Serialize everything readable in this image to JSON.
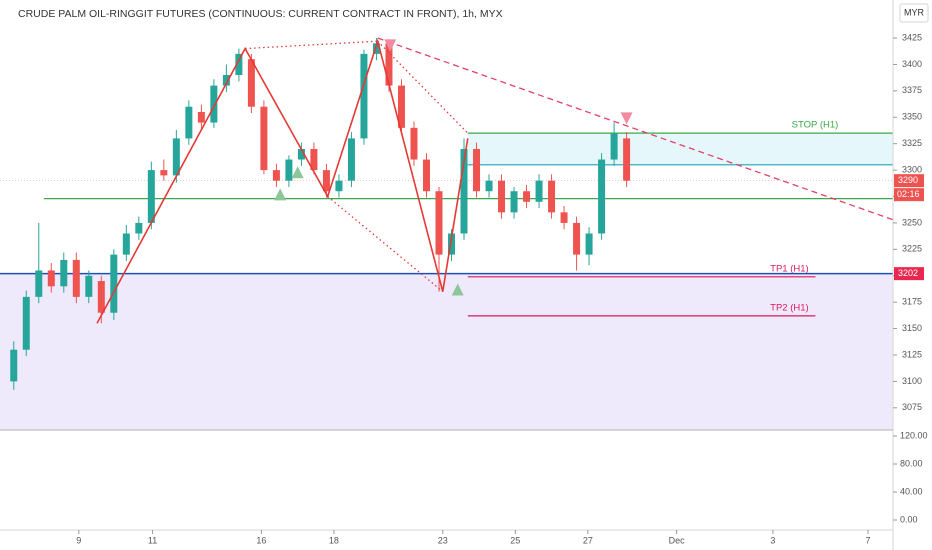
{
  "chart_data": {
    "type": "candlestick",
    "title": "CRUDE PALM OIL-RINGGIT FUTURES (CONTINUOUS: CURRENT CONTRACT IN FRONT), 1h, MYX",
    "currency": "MYR",
    "up_color": "#26a69a",
    "down_color": "#ef5350",
    "open": [
      3100,
      3130,
      3180,
      3205,
      3190,
      3215,
      3180,
      3195,
      3165,
      3220,
      3240,
      3250,
      3300,
      3295,
      3330,
      3355,
      3345,
      3380,
      3390,
      3405,
      3360,
      3300,
      3290,
      3310,
      3320,
      3300,
      3280,
      3290,
      3330,
      3410,
      3420,
      3380,
      3340,
      3310,
      3280,
      3220,
      3240,
      3320,
      3280,
      3290,
      3260,
      3280,
      3270,
      3290,
      3260,
      3250,
      3220,
      3240,
      3310,
      3330
    ],
    "high": [
      3138,
      3186,
      3250,
      3212,
      3222,
      3222,
      3205,
      3200,
      3225,
      3248,
      3256,
      3308,
      3310,
      3338,
      3366,
      3362,
      3386,
      3400,
      3415,
      3410,
      3366,
      3306,
      3314,
      3326,
      3326,
      3306,
      3296,
      3336,
      3414,
      3425,
      3424,
      3386,
      3346,
      3316,
      3284,
      3244,
      3330,
      3326,
      3296,
      3296,
      3284,
      3286,
      3296,
      3296,
      3266,
      3256,
      3246,
      3316,
      3345,
      3336
    ],
    "low": [
      3092,
      3124,
      3174,
      3184,
      3184,
      3174,
      3174,
      3155,
      3158,
      3214,
      3234,
      3244,
      3290,
      3288,
      3324,
      3338,
      3340,
      3374,
      3384,
      3354,
      3296,
      3284,
      3284,
      3304,
      3296,
      3274,
      3274,
      3284,
      3324,
      3404,
      3374,
      3334,
      3304,
      3274,
      3185,
      3214,
      3234,
      3274,
      3274,
      3254,
      3254,
      3264,
      3264,
      3254,
      3244,
      3205,
      3210,
      3234,
      3304,
      3284
    ],
    "close": [
      3130,
      3180,
      3205,
      3190,
      3215,
      3180,
      3200,
      3165,
      3220,
      3240,
      3250,
      3300,
      3295,
      3330,
      3360,
      3345,
      3380,
      3390,
      3410,
      3360,
      3300,
      3290,
      3310,
      3320,
      3300,
      3280,
      3290,
      3330,
      3410,
      3420,
      3380,
      3340,
      3310,
      3280,
      3220,
      3240,
      3320,
      3280,
      3290,
      3260,
      3280,
      3270,
      3290,
      3260,
      3250,
      3220,
      3240,
      3310,
      3335,
      3290
    ],
    "xlim": [
      -1.1,
      70.3
    ],
    "xticks": [
      {
        "value": 5.2,
        "label": "9"
      },
      {
        "value": 11.1,
        "label": "11"
      },
      {
        "value": 19.8,
        "label": "16"
      },
      {
        "value": 25.6,
        "label": "18"
      },
      {
        "value": 34.3,
        "label": "23"
      },
      {
        "value": 40.1,
        "label": "25"
      },
      {
        "value": 45.9,
        "label": "27"
      },
      {
        "value": 53.0,
        "label": "Dec"
      },
      {
        "value": 60.7,
        "label": "3"
      },
      {
        "value": 68.3,
        "label": "7"
      }
    ],
    "ylim": [
      3054,
      3461
    ],
    "yticks": [
      3075,
      3100,
      3125,
      3150,
      3175,
      3200,
      3225,
      3250,
      3275,
      3300,
      3325,
      3350,
      3375,
      3400,
      3425
    ],
    "last_price": {
      "value": 3290,
      "label": "3290",
      "countdown": "02:16"
    },
    "support_tag": {
      "value": 3202,
      "label": "3202"
    },
    "zones": [
      {
        "y": [
          3054,
          3202
        ],
        "x": [
          -1.1,
          70.3
        ],
        "color": "#efeafb"
      },
      {
        "y": [
          3305,
          3335
        ],
        "x": [
          36.3,
          70.3
        ],
        "color": "#e6f7fb"
      }
    ],
    "hlines": [
      {
        "value": 3202,
        "x": [
          -1.1,
          70.3
        ],
        "color": "#1e4fb8"
      },
      {
        "value": 3273,
        "x": [
          2.4,
          70.3
        ],
        "color": "#3aa84a"
      },
      {
        "value": 3335,
        "x": [
          36.3,
          70.3
        ],
        "color": "#3aa84a",
        "label": "STOP (H1)"
      },
      {
        "value": 3305,
        "x": [
          36.3,
          70.3
        ],
        "color": "#1ca6b8"
      },
      {
        "value": 3199,
        "x": [
          36.3,
          64.1
        ],
        "color": "#d81b60",
        "label": "TP1 (H1)"
      },
      {
        "value": 3162,
        "x": [
          36.3,
          64.1
        ],
        "color": "#d81b60",
        "label": "TP2 (H1)"
      }
    ],
    "polylines": [
      {
        "style": "solid",
        "color": "#e53935",
        "x": [
          6.66,
          18.5,
          25.1,
          29.1,
          34.3,
          36.3
        ],
        "y": [
          3155,
          3415,
          3275,
          3422,
          3185,
          3330
        ]
      },
      {
        "style": "dotted",
        "color": "#e53935",
        "x": [
          18.5,
          29.1
        ],
        "y": [
          3415,
          3422
        ]
      },
      {
        "style": "dotted",
        "color": "#e53935",
        "x": [
          25.1,
          34.3
        ],
        "y": [
          3275,
          3185
        ]
      },
      {
        "style": "dotted",
        "color": "#e53935",
        "x": [
          29.1,
          36.3
        ],
        "y": [
          3422,
          3335
        ]
      },
      {
        "style": "dashed",
        "color": "#e0416a",
        "x": [
          29.1,
          70.3
        ],
        "y": [
          3425,
          3253
        ]
      }
    ],
    "markers": [
      {
        "shape": "up",
        "color": "#8cc79a",
        "x": 21.3,
        "y": 3277
      },
      {
        "shape": "up",
        "color": "#8cc79a",
        "x": 22.7,
        "y": 3298
      },
      {
        "shape": "up",
        "color": "#8cc79a",
        "x": 35.5,
        "y": 3187
      },
      {
        "shape": "down",
        "color": "#f28ba0",
        "x": 30.1,
        "y": 3418
      },
      {
        "shape": "down",
        "color": "#f28ba0",
        "x": 49.0,
        "y": 3349
      }
    ],
    "pane2": {
      "ylim": [
        -14.3,
        128.6
      ],
      "yticks": [
        {
          "value": 0,
          "label": "0.00"
        },
        {
          "value": 40,
          "label": "40.00"
        },
        {
          "value": 80,
          "label": "80.00"
        },
        {
          "value": 120,
          "label": "120.00"
        }
      ]
    }
  }
}
